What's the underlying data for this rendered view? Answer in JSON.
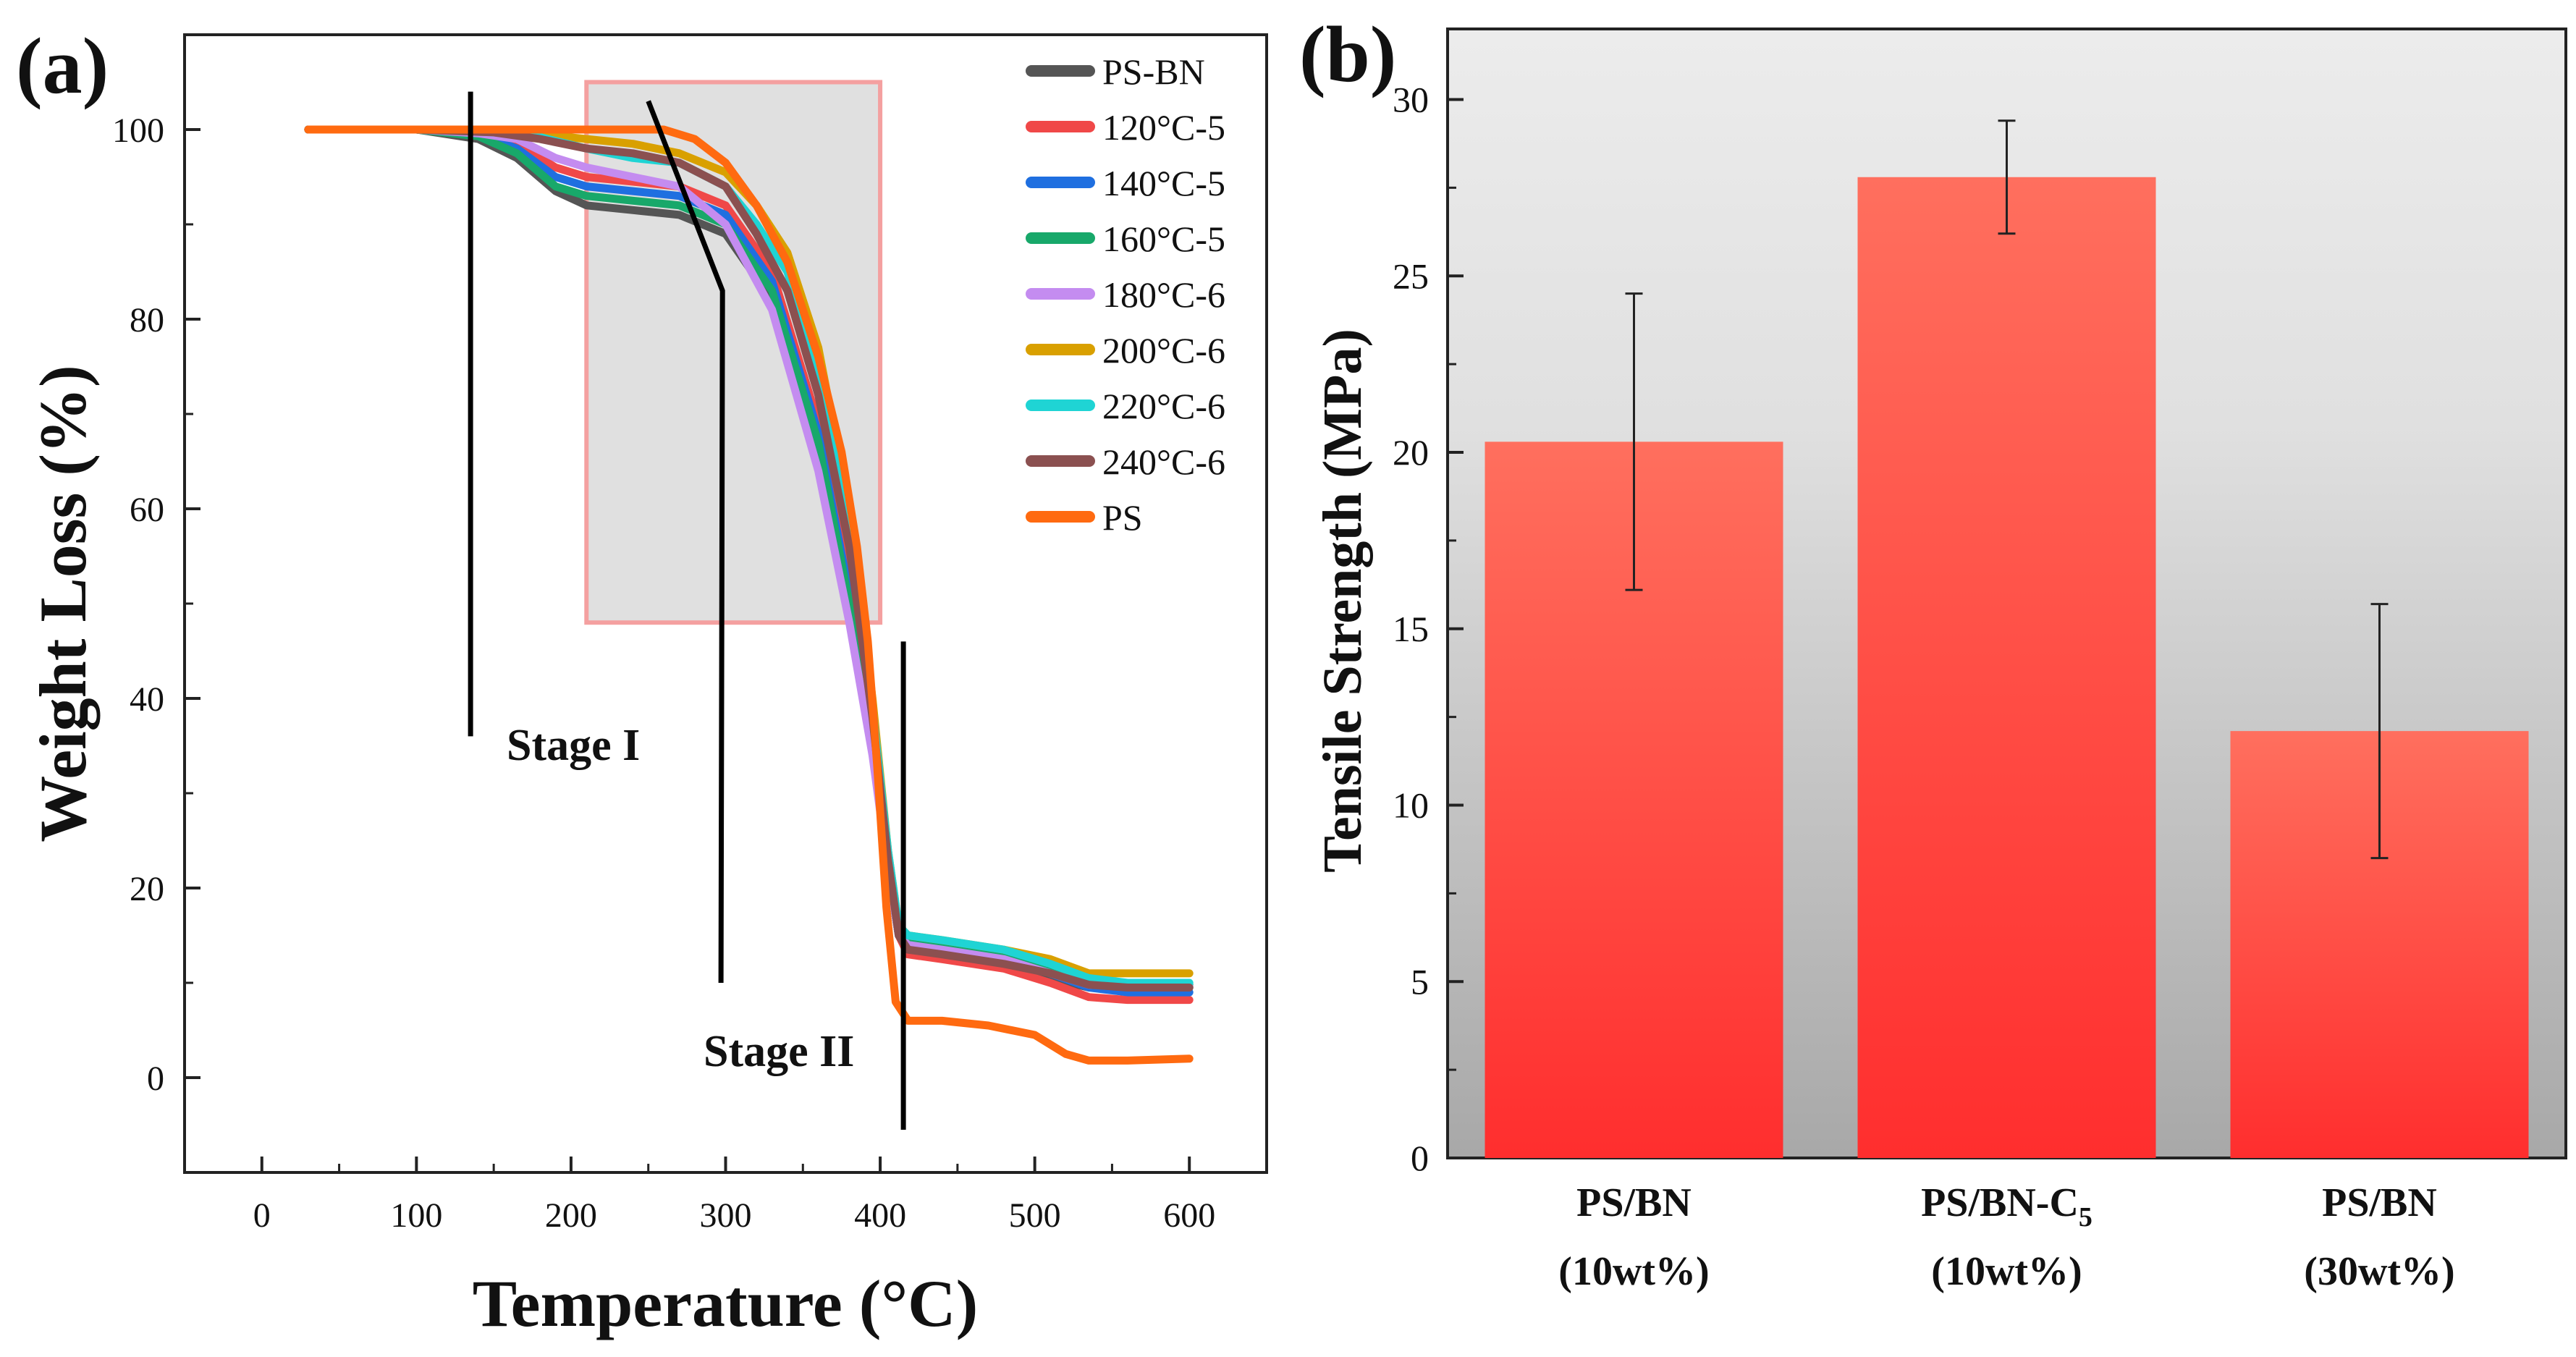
{
  "figure_labels": {
    "a": "(a)",
    "b": "(b)"
  },
  "colors": {
    "PS-BN": "#555555",
    "120C5": "#f04848",
    "140C5": "#1f6fe0",
    "160C5": "#18a86a",
    "180C6": "#c48cf0",
    "200C6": "#d9a000",
    "220C6": "#1fd4d4",
    "240C6": "#8b5050",
    "PS": "#ff6a10",
    "bar": "#ff3c3c",
    "highlight": "#f4a0a0"
  },
  "chart_data": [
    {
      "type": "line",
      "title": "",
      "xlabel": "Temperature (°C)",
      "ylabel": "Weight Loss (%)",
      "xlim": [
        -50,
        650
      ],
      "ylim": [
        -10,
        110
      ],
      "xticks": [
        0,
        100,
        200,
        300,
        400,
        500,
        600
      ],
      "yticks": [
        0,
        20,
        40,
        60,
        80,
        100
      ],
      "xtick_labels": [
        "0",
        "100",
        "200",
        "300",
        "400",
        "500",
        "600"
      ],
      "ytick_labels": [
        "0",
        "20",
        "40",
        "60",
        "80",
        "100"
      ],
      "legend_position": "top-right",
      "annotations": [
        "Stage I",
        "Stage II"
      ],
      "highlight_region": {
        "x": [
          210,
          400
        ],
        "y": [
          48,
          105
        ]
      },
      "series": [
        {
          "name": "PS-BN",
          "color_key": "PS-BN",
          "x": [
            30,
            100,
            140,
            165,
            190,
            210,
            240,
            270,
            300,
            330,
            360,
            380,
            395,
            405,
            412,
            418,
            440,
            480,
            510,
            535,
            560,
            600
          ],
          "y": [
            100,
            100,
            99,
            97,
            93.5,
            92,
            91.5,
            91,
            89,
            82,
            67,
            50,
            35,
            22,
            15,
            13.5,
            13,
            12,
            10.5,
            9.5,
            9.5,
            9.5
          ]
        },
        {
          "name": "120°C-5",
          "color_key": "120C5",
          "x": [
            30,
            100,
            140,
            165,
            190,
            210,
            240,
            270,
            300,
            330,
            360,
            380,
            395,
            405,
            412,
            418,
            440,
            480,
            510,
            535,
            560,
            600
          ],
          "y": [
            100,
            100,
            99.5,
            98.5,
            96,
            95,
            94.5,
            94,
            92,
            85,
            69,
            52,
            36,
            22,
            15,
            13,
            12.5,
            11.5,
            10,
            8.5,
            8.2,
            8.2
          ]
        },
        {
          "name": "140°C-5",
          "color_key": "140C5",
          "x": [
            30,
            100,
            140,
            165,
            190,
            210,
            240,
            270,
            300,
            330,
            360,
            380,
            395,
            405,
            412,
            418,
            440,
            480,
            510,
            535,
            560,
            600
          ],
          "y": [
            100,
            100,
            99.5,
            98,
            95,
            94,
            93.5,
            93,
            91,
            84,
            68,
            51,
            35,
            22,
            15,
            14,
            13.5,
            12.5,
            11,
            9.5,
            9,
            9
          ]
        },
        {
          "name": "160°C-5",
          "color_key": "160C5",
          "x": [
            30,
            100,
            140,
            165,
            190,
            210,
            240,
            270,
            300,
            330,
            360,
            380,
            395,
            405,
            412,
            418,
            440,
            480,
            510,
            535,
            560,
            600
          ],
          "y": [
            100,
            100,
            99.3,
            97.5,
            94,
            93,
            92.5,
            92,
            90,
            83,
            67,
            50,
            35,
            22,
            15,
            14.5,
            14,
            13,
            11.5,
            10,
            9.8,
            9.8
          ]
        },
        {
          "name": "180°C-6",
          "color_key": "180C6",
          "x": [
            30,
            100,
            140,
            165,
            190,
            210,
            240,
            270,
            300,
            330,
            360,
            380,
            395,
            405,
            412,
            418,
            440,
            480,
            510,
            535,
            560,
            600
          ],
          "y": [
            100,
            100,
            99.6,
            99,
            97,
            96,
            95,
            94,
            90,
            81,
            64,
            48,
            34,
            22,
            15,
            14,
            13.5,
            12.5,
            11,
            9.8,
            9.6,
            9.6
          ]
        },
        {
          "name": "200°C-6",
          "color_key": "200C6",
          "x": [
            30,
            100,
            150,
            180,
            210,
            240,
            270,
            300,
            320,
            340,
            360,
            380,
            395,
            405,
            412,
            418,
            440,
            480,
            510,
            535,
            560,
            600
          ],
          "y": [
            100,
            100,
            99.8,
            99.5,
            99,
            98.5,
            97.5,
            95.5,
            92,
            87,
            77,
            60,
            40,
            24,
            16,
            15,
            14.5,
            13.5,
            12.5,
            11,
            11,
            11
          ]
        },
        {
          "name": "220°C-6",
          "color_key": "220C6",
          "x": [
            30,
            100,
            150,
            180,
            210,
            240,
            270,
            300,
            320,
            340,
            360,
            380,
            395,
            405,
            412,
            418,
            440,
            480,
            510,
            535,
            560,
            600
          ],
          "y": [
            100,
            100,
            99.7,
            99.2,
            98,
            97,
            96.5,
            94,
            90,
            85,
            74,
            58,
            39,
            24,
            16,
            15,
            14.5,
            13.5,
            12,
            10.5,
            10,
            10
          ]
        },
        {
          "name": "240°C-6",
          "color_key": "240C6",
          "x": [
            30,
            100,
            150,
            180,
            210,
            240,
            270,
            300,
            320,
            340,
            360,
            380,
            395,
            405,
            412,
            418,
            440,
            480,
            510,
            535,
            560,
            600
          ],
          "y": [
            100,
            100,
            99.7,
            99,
            98,
            97.5,
            96.5,
            94,
            89,
            83,
            72,
            56,
            38,
            23,
            15,
            13.5,
            13,
            12,
            11,
            9.8,
            9.5,
            9.5
          ]
        },
        {
          "name": "PS",
          "color_key": "PS",
          "x": [
            30,
            100,
            200,
            260,
            280,
            300,
            320,
            340,
            360,
            375,
            385,
            392,
            398,
            404,
            410,
            418,
            440,
            470,
            500,
            520,
            535,
            560,
            600
          ],
          "y": [
            100,
            100,
            100,
            100,
            99,
            96.5,
            92,
            86,
            76,
            66,
            56,
            46,
            33,
            18,
            8,
            6,
            6,
            5.5,
            4.5,
            2.5,
            1.8,
            1.8,
            2
          ]
        }
      ]
    },
    {
      "type": "bar",
      "title": "",
      "xlabel": "",
      "ylabel": "Tensile Strength (MPa)",
      "ylim": [
        0,
        32
      ],
      "yticks": [
        0,
        5,
        10,
        15,
        20,
        25,
        30
      ],
      "ytick_labels": [
        "0",
        "5",
        "10",
        "15",
        "20",
        "25",
        "30"
      ],
      "categories": [
        {
          "line1": "PS/BN",
          "line2": "(10wt%)"
        },
        {
          "line1": "PS/BN-C",
          "line1_sub": "5",
          "line2": "(10wt%)"
        },
        {
          "line1": "PS/BN",
          "line2": "(30wt%)"
        }
      ],
      "values": [
        20.3,
        27.8,
        12.1
      ],
      "errors": [
        4.2,
        1.6,
        3.6
      ]
    }
  ]
}
